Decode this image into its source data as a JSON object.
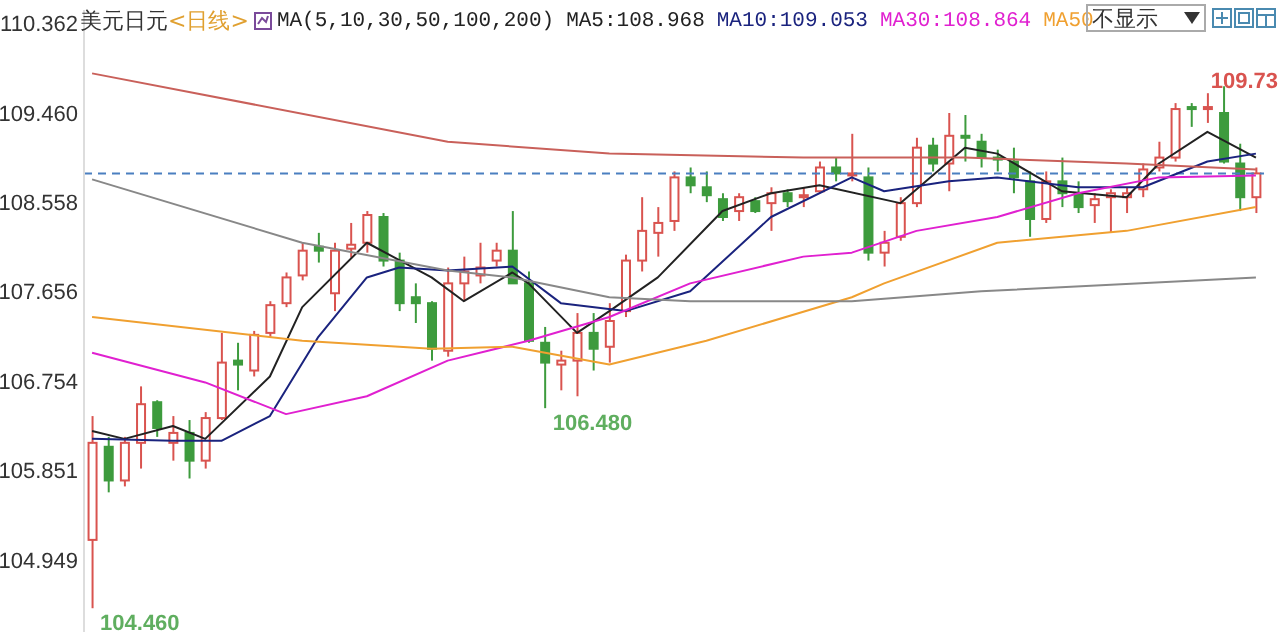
{
  "chart_data": {
    "type": "candlestick",
    "title": "美元日元",
    "subtitle": "<日线>",
    "legend_title": "MA(5,10,30,50,100,200)",
    "legend": "top",
    "categories": [
      null,
      null,
      null,
      null,
      null,
      null,
      null,
      null,
      null,
      null,
      null,
      null,
      null,
      null,
      null,
      null,
      null,
      null,
      null,
      null,
      null,
      null,
      null,
      null,
      null,
      null,
      null,
      null,
      null,
      null,
      null,
      null,
      null,
      null,
      null,
      null,
      null,
      null,
      null,
      null,
      null,
      null,
      null,
      null,
      null,
      null,
      null,
      null,
      null,
      null,
      null,
      null,
      null,
      null,
      null,
      null,
      null,
      null,
      null,
      null,
      null,
      null,
      null,
      null,
      null,
      null,
      null,
      null,
      null,
      null,
      null,
      null,
      null
    ],
    "ohlc": [
      [
        105.15,
        106.4,
        104.46,
        106.13
      ],
      [
        106.09,
        106.19,
        105.63,
        105.75
      ],
      [
        105.75,
        106.19,
        105.69,
        106.13
      ],
      [
        106.13,
        106.7,
        105.87,
        106.52
      ],
      [
        106.54,
        106.56,
        106.19,
        106.28
      ],
      [
        106.13,
        106.4,
        105.95,
        106.23
      ],
      [
        106.23,
        106.36,
        105.77,
        105.95
      ],
      [
        105.95,
        106.44,
        105.87,
        106.38
      ],
      [
        106.38,
        107.24,
        106.36,
        106.94
      ],
      [
        106.96,
        107.14,
        106.66,
        106.92
      ],
      [
        106.86,
        107.26,
        106.8,
        107.22
      ],
      [
        107.24,
        107.56,
        107.2,
        107.52
      ],
      [
        107.54,
        107.85,
        107.5,
        107.8
      ],
      [
        107.82,
        108.15,
        107.77,
        108.07
      ],
      [
        108.11,
        108.25,
        107.95,
        108.07
      ],
      [
        107.64,
        108.15,
        107.46,
        108.07
      ],
      [
        108.09,
        108.35,
        108.0,
        108.13
      ],
      [
        108.15,
        108.47,
        108.05,
        108.43
      ],
      [
        108.41,
        108.45,
        107.91,
        107.97
      ],
      [
        107.97,
        108.05,
        107.46,
        107.54
      ],
      [
        107.6,
        107.74,
        107.34,
        107.54
      ],
      [
        107.54,
        107.56,
        106.96,
        107.08
      ],
      [
        107.06,
        107.9,
        107.0,
        107.74
      ],
      [
        107.74,
        108.01,
        107.56,
        107.86
      ],
      [
        107.82,
        108.15,
        107.74,
        107.9
      ],
      [
        107.97,
        108.15,
        107.91,
        108.07
      ],
      [
        108.07,
        108.47,
        107.74,
        107.74
      ],
      [
        107.74,
        107.86,
        107.14,
        107.16
      ],
      [
        107.14,
        107.3,
        106.48,
        106.94
      ],
      [
        106.92,
        107.06,
        106.66,
        106.96
      ],
      [
        106.96,
        107.44,
        106.6,
        107.24
      ],
      [
        107.24,
        107.44,
        106.86,
        107.08
      ],
      [
        107.1,
        107.54,
        106.94,
        107.36
      ],
      [
        107.46,
        108.03,
        107.4,
        107.97
      ],
      [
        107.97,
        108.61,
        107.86,
        108.27
      ],
      [
        108.25,
        108.51,
        108.01,
        108.35
      ],
      [
        108.37,
        108.87,
        108.27,
        108.81
      ],
      [
        108.81,
        108.91,
        108.65,
        108.73
      ],
      [
        108.71,
        108.87,
        108.56,
        108.63
      ],
      [
        108.59,
        108.65,
        108.37,
        108.41
      ],
      [
        108.47,
        108.65,
        108.37,
        108.61
      ],
      [
        108.57,
        108.61,
        108.45,
        108.47
      ],
      [
        108.55,
        108.71,
        108.27,
        108.65
      ],
      [
        108.65,
        108.69,
        108.51,
        108.57
      ],
      [
        108.61,
        108.71,
        108.51,
        108.63
      ],
      [
        108.67,
        108.97,
        108.65,
        108.91
      ],
      [
        108.91,
        109.01,
        108.77,
        108.85
      ],
      [
        108.83,
        109.25,
        108.77,
        108.85
      ],
      [
        108.81,
        108.91,
        107.97,
        108.05
      ],
      [
        108.05,
        108.27,
        107.91,
        108.15
      ],
      [
        108.21,
        108.61,
        108.17,
        108.55
      ],
      [
        108.55,
        109.21,
        108.51,
        109.11
      ],
      [
        109.13,
        109.21,
        108.87,
        108.95
      ],
      [
        108.95,
        109.46,
        108.67,
        109.23
      ],
      [
        109.23,
        109.44,
        108.97,
        109.21
      ],
      [
        109.17,
        109.25,
        108.91,
        109.01
      ],
      [
        109.01,
        109.09,
        108.87,
        108.99
      ],
      [
        108.97,
        109.11,
        108.65,
        108.81
      ],
      [
        108.77,
        108.87,
        108.21,
        108.39
      ],
      [
        108.39,
        108.87,
        108.35,
        108.77
      ],
      [
        108.77,
        109.01,
        108.51,
        108.65
      ],
      [
        108.65,
        108.77,
        108.45,
        108.51
      ],
      [
        108.53,
        108.65,
        108.35,
        108.59
      ],
      [
        108.61,
        108.69,
        108.25,
        108.65
      ],
      [
        108.61,
        108.71,
        108.45,
        108.65
      ],
      [
        108.69,
        108.95,
        108.61,
        108.89
      ],
      [
        108.91,
        109.17,
        108.87,
        109.01
      ],
      [
        109.01,
        109.56,
        108.97,
        109.5
      ],
      [
        109.52,
        109.56,
        109.32,
        109.5
      ],
      [
        109.5,
        109.66,
        109.36,
        109.52
      ],
      [
        109.46,
        109.73,
        108.95,
        108.97
      ],
      [
        108.95,
        109.15,
        108.47,
        108.61
      ],
      [
        108.61,
        108.91,
        108.45,
        108.85
      ]
    ],
    "colors": [
      "#d9534f",
      "#3d9b3d",
      "#d9534f",
      "#d9534f",
      "#3d9b3d",
      "#d9534f",
      "#3d9b3d",
      "#d9534f",
      "#d9534f",
      "#3d9b3d",
      "#d9534f",
      "#d9534f",
      "#d9534f",
      "#d9534f",
      "#3d9b3d",
      "#d9534f",
      "#d9534f",
      "#d9534f",
      "#3d9b3d",
      "#3d9b3d",
      "#3d9b3d",
      "#3d9b3d",
      "#d9534f",
      "#d9534f",
      "#d9534f",
      "#d9534f",
      "#3d9b3d",
      "#3d9b3d",
      "#3d9b3d",
      "#d9534f",
      "#d9534f",
      "#3d9b3d",
      "#d9534f",
      "#d9534f",
      "#d9534f",
      "#d9534f",
      "#d9534f",
      "#3d9b3d",
      "#3d9b3d",
      "#3d9b3d",
      "#d9534f",
      "#3d9b3d",
      "#d9534f",
      "#3d9b3d",
      "#d9534f",
      "#d9534f",
      "#3d9b3d",
      "#d9534f",
      "#3d9b3d",
      "#d9534f",
      "#d9534f",
      "#d9534f",
      "#3d9b3d",
      "#d9534f",
      "#3d9b3d",
      "#3d9b3d",
      "#3d9b3d",
      "#3d9b3d",
      "#3d9b3d",
      "#d9534f",
      "#3d9b3d",
      "#3d9b3d",
      "#d9534f",
      "#d9534f",
      "#d9534f",
      "#d9534f",
      "#d9534f",
      "#d9534f",
      "#3d9b3d",
      "#d9534f",
      "#3d9b3d",
      "#3d9b3d",
      "#d9534f"
    ],
    "series": [
      {
        "type": "line",
        "name": "MA5:108.968",
        "color": "#222222",
        "values": [
          106.25,
          null,
          106.17,
          null,
          null,
          106.3,
          null,
          106.17,
          null,
          null,
          null,
          106.8,
          null,
          107.5,
          null,
          null,
          null,
          108.15,
          null,
          null,
          null,
          107.8,
          null,
          107.56,
          null,
          null,
          107.85,
          107.74,
          null,
          null,
          107.24,
          null,
          107.46,
          null,
          null,
          107.8,
          null,
          null,
          null,
          108.47,
          null,
          null,
          108.65,
          null,
          null,
          108.73,
          null,
          null,
          null,
          null,
          108.55,
          null,
          null,
          null,
          109.11,
          null,
          109.05,
          null,
          null,
          null,
          108.67,
          null,
          null,
          null,
          108.61,
          null,
          108.95,
          null,
          null,
          109.27,
          null,
          null,
          109.01
        ]
      },
      {
        "type": "line",
        "name": "MA10:109.053",
        "color": "#1a237e",
        "values": [
          106.17,
          null,
          null,
          null,
          null,
          106.15,
          null,
          null,
          106.15,
          null,
          null,
          106.4,
          null,
          null,
          107.2,
          null,
          null,
          107.8,
          null,
          107.9,
          null,
          null,
          107.87,
          null,
          null,
          null,
          107.91,
          null,
          null,
          107.54,
          null,
          null,
          null,
          107.46,
          null,
          null,
          null,
          107.66,
          null,
          null,
          null,
          null,
          108.41,
          null,
          null,
          null,
          null,
          108.81,
          null,
          108.67,
          null,
          null,
          null,
          108.77,
          null,
          null,
          108.81,
          null,
          null,
          null,
          null,
          108.71,
          null,
          null,
          null,
          108.71,
          null,
          null,
          null,
          108.97,
          null,
          null,
          109.05
        ]
      },
      {
        "type": "line",
        "name": "MA30:108.864",
        "color": "#e020d0",
        "values": [
          107.04,
          null,
          null,
          null,
          null,
          null,
          null,
          106.74,
          null,
          null,
          null,
          null,
          106.42,
          null,
          null,
          null,
          null,
          106.6,
          null,
          null,
          null,
          null,
          106.96,
          null,
          null,
          null,
          null,
          107.16,
          null,
          null,
          null,
          null,
          107.4,
          null,
          null,
          null,
          null,
          107.74,
          null,
          null,
          null,
          null,
          null,
          null,
          108.01,
          null,
          null,
          108.05,
          null,
          null,
          null,
          108.27,
          null,
          null,
          null,
          null,
          108.41,
          null,
          null,
          null,
          null,
          108.65,
          null,
          null,
          null,
          null,
          108.81,
          null,
          null,
          null,
          null,
          null,
          108.83
        ]
      },
      {
        "type": "line",
        "name": "MA50",
        "color": "#f0a030",
        "values": [
          107.4,
          null,
          null,
          null,
          null,
          null,
          null,
          null,
          null,
          null,
          null,
          null,
          null,
          107.16,
          null,
          null,
          null,
          null,
          null,
          null,
          null,
          107.08,
          null,
          null,
          null,
          null,
          107.1,
          null,
          null,
          null,
          null,
          null,
          106.92,
          null,
          null,
          null,
          null,
          null,
          107.16,
          null,
          null,
          null,
          null,
          null,
          null,
          null,
          null,
          107.6,
          null,
          107.74,
          null,
          null,
          null,
          null,
          null,
          null,
          108.15,
          null,
          null,
          null,
          null,
          null,
          null,
          null,
          108.27,
          null,
          null,
          null,
          null,
          null,
          null,
          null,
          108.51
        ]
      },
      {
        "type": "line",
        "color": "#888888",
        "values": [
          108.79,
          null,
          null,
          null,
          null,
          null,
          null,
          null,
          null,
          null,
          null,
          null,
          null,
          108.15,
          null,
          null,
          null,
          null,
          null,
          null,
          null,
          null,
          107.87,
          null,
          null,
          null,
          107.8,
          null,
          null,
          null,
          null,
          null,
          107.6,
          null,
          null,
          null,
          null,
          107.56,
          null,
          null,
          null,
          null,
          null,
          null,
          null,
          null,
          null,
          107.56,
          null,
          null,
          null,
          null,
          null,
          null,
          null,
          107.66,
          null,
          null,
          null,
          null,
          null,
          null,
          null,
          null,
          null,
          null,
          null,
          null,
          null,
          null,
          null,
          null,
          107.8
        ]
      },
      {
        "type": "line",
        "color": "#c9605a",
        "values": [
          109.86,
          null,
          null,
          null,
          null,
          null,
          null,
          null,
          null,
          null,
          null,
          null,
          null,
          null,
          null,
          null,
          null,
          null,
          null,
          null,
          null,
          null,
          109.17,
          null,
          null,
          null,
          null,
          null,
          null,
          null,
          null,
          null,
          109.05,
          null,
          null,
          null,
          null,
          null,
          null,
          null,
          null,
          null,
          null,
          null,
          109.01,
          null,
          null,
          null,
          null,
          null,
          null,
          null,
          null,
          null,
          109.01,
          null,
          null,
          null,
          null,
          null,
          null,
          null,
          null,
          null,
          108.95,
          null,
          null,
          null,
          null,
          null,
          null,
          null,
          108.89
        ]
      }
    ],
    "ylim": [
      104.22,
      110.5
    ],
    "yticks": [
      104.949,
      105.851,
      106.754,
      107.656,
      108.558,
      {
        "value": 109.46,
        "label": "109.460"
      },
      110.362
    ],
    "ref_lines": [
      {
        "axis": "y",
        "value": 108.85,
        "color": "#4a7fc0",
        "line_style": "dashed"
      }
    ],
    "annotations": [
      "104.460",
      "106.480",
      "109.73",
      "不显示"
    ]
  }
}
